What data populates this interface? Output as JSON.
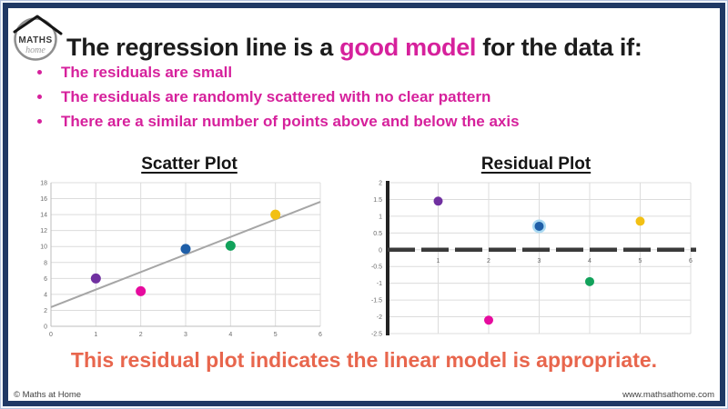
{
  "logo": {
    "name": "MATHS",
    "script": "home"
  },
  "title": {
    "part1": "The regression line is a ",
    "highlight": "good model",
    "part2": " for the data if:"
  },
  "bullets": [
    "The residuals are small",
    "The residuals are randomly scattered with no clear pattern",
    "There are a similar number of points above and below the axis"
  ],
  "conclusion": "This residual plot indicates the linear model is appropriate.",
  "footer": {
    "left": "© Maths at Home",
    "right": "www.mathsathome.com"
  },
  "colors": {
    "navy": "#1f3864",
    "page_bg": "#b6c3de",
    "magenta": "#d6219c",
    "orange": "#e8664d"
  },
  "chart_data": [
    {
      "type": "scatter",
      "title": "Scatter Plot",
      "xlim": [
        0,
        6
      ],
      "ylim": [
        0,
        18
      ],
      "x_ticks": [
        0,
        1,
        2,
        3,
        4,
        5,
        6
      ],
      "y_ticks": [
        0,
        2,
        4,
        6,
        8,
        10,
        12,
        14,
        16,
        18
      ],
      "grid": true,
      "axis_style": "light",
      "trend_line": {
        "x": [
          0,
          6
        ],
        "y": [
          2.4,
          15.6
        ],
        "color": "#a6a6a6"
      },
      "points": [
        {
          "x": 1,
          "y": 6,
          "color": "#7030a0"
        },
        {
          "x": 2,
          "y": 4.4,
          "color": "#e60b9e"
        },
        {
          "x": 3,
          "y": 9.7,
          "color": "#1f5fa8"
        },
        {
          "x": 4,
          "y": 10.1,
          "color": "#12a25b"
        },
        {
          "x": 5,
          "y": 14,
          "color": "#f2c014"
        }
      ]
    },
    {
      "type": "scatter",
      "title": "Residual Plot",
      "xlim": [
        0,
        6
      ],
      "ylim": [
        -2.5,
        2
      ],
      "x_ticks": [
        1,
        2,
        3,
        4,
        5,
        6
      ],
      "y_ticks": [
        2,
        1.5,
        1,
        0.5,
        0,
        -0.5,
        -1,
        -1.5,
        -2,
        -2.5
      ],
      "grid": true,
      "axis_style": "bold-cross",
      "points": [
        {
          "x": 1,
          "y": 1.45,
          "color": "#7030a0"
        },
        {
          "x": 2,
          "y": -2.1,
          "color": "#e60b9e"
        },
        {
          "x": 3,
          "y": 0.7,
          "color": "#1f5fa8",
          "halo": "#a9d9f2"
        },
        {
          "x": 4,
          "y": -0.95,
          "color": "#12a25b"
        },
        {
          "x": 5,
          "y": 0.85,
          "color": "#f2c014"
        }
      ]
    }
  ]
}
